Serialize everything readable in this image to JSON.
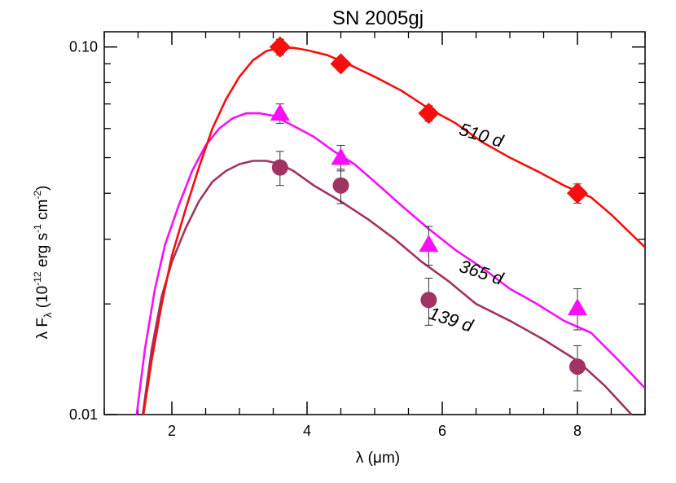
{
  "chart_data": {
    "type": "scatter",
    "title": "SN 2005gj",
    "xlabel": "λ (μm)",
    "ylabel": {
      "prefix": "λ F",
      "sub": "λ",
      "units_open": " (10",
      "exp1": "-12",
      "units_mid": " erg s",
      "exp2": "-1",
      "units_mid2": " cm",
      "exp3": "-2",
      "units_close": ")"
    },
    "xlim": [
      1,
      9
    ],
    "ylim": [
      0.01,
      0.11
    ],
    "yscale": "log",
    "xticks": [
      2,
      4,
      6,
      8
    ],
    "xtick_labels": [
      "2",
      "4",
      "6",
      "8"
    ],
    "yticks": [
      0.01,
      0.1
    ],
    "ytick_labels": [
      "0.01",
      "0.10"
    ],
    "grid": false,
    "series": [
      {
        "label": "510 d",
        "color": "#f50f0f",
        "marker": "diamond",
        "points": [
          {
            "x": 3.6,
            "y": 0.1,
            "err": 0.005
          },
          {
            "x": 4.5,
            "y": 0.09,
            "err": 0.0035
          },
          {
            "x": 5.8,
            "y": 0.066,
            "err": 0.0032
          },
          {
            "x": 8.0,
            "y": 0.04,
            "err": 0.0024
          }
        ],
        "model": [
          [
            1.58,
            0.01
          ],
          [
            1.7,
            0.014
          ],
          [
            1.85,
            0.02
          ],
          [
            2.0,
            0.027
          ],
          [
            2.2,
            0.036
          ],
          [
            2.4,
            0.047
          ],
          [
            2.6,
            0.06
          ],
          [
            2.8,
            0.072
          ],
          [
            3.0,
            0.083
          ],
          [
            3.2,
            0.092
          ],
          [
            3.4,
            0.0975
          ],
          [
            3.6,
            0.0995
          ],
          [
            3.8,
            0.0995
          ],
          [
            4.0,
            0.098
          ],
          [
            4.3,
            0.095
          ],
          [
            4.6,
            0.09
          ],
          [
            5.0,
            0.083
          ],
          [
            5.4,
            0.076
          ],
          [
            5.8,
            0.068
          ],
          [
            6.2,
            0.062
          ],
          [
            6.6,
            0.055
          ],
          [
            7.0,
            0.05
          ],
          [
            7.4,
            0.046
          ],
          [
            7.8,
            0.042
          ],
          [
            8.2,
            0.039
          ],
          [
            8.5,
            0.035
          ],
          [
            9.0,
            0.0285
          ]
        ]
      },
      {
        "label": "365 d",
        "color": "#f710f7",
        "marker": "triangle",
        "points": [
          {
            "x": 3.6,
            "y": 0.066,
            "err": 0.004
          },
          {
            "x": 4.5,
            "y": 0.05,
            "err": 0.004
          },
          {
            "x": 5.8,
            "y": 0.029,
            "err": 0.0035
          },
          {
            "x": 8.0,
            "y": 0.0195,
            "err": 0.0025
          }
        ],
        "model": [
          [
            1.48,
            0.01
          ],
          [
            1.6,
            0.015
          ],
          [
            1.75,
            0.022
          ],
          [
            1.9,
            0.029
          ],
          [
            2.1,
            0.037
          ],
          [
            2.3,
            0.046
          ],
          [
            2.5,
            0.054
          ],
          [
            2.7,
            0.06
          ],
          [
            2.9,
            0.064
          ],
          [
            3.1,
            0.066
          ],
          [
            3.3,
            0.066
          ],
          [
            3.5,
            0.065
          ],
          [
            3.8,
            0.061
          ],
          [
            4.1,
            0.057
          ],
          [
            4.4,
            0.052
          ],
          [
            4.7,
            0.048
          ],
          [
            5.0,
            0.043
          ],
          [
            5.4,
            0.037
          ],
          [
            5.8,
            0.032
          ],
          [
            6.2,
            0.028
          ],
          [
            6.6,
            0.025
          ],
          [
            7.0,
            0.022
          ],
          [
            7.4,
            0.02
          ],
          [
            7.8,
            0.018
          ],
          [
            8.2,
            0.0167
          ],
          [
            8.6,
            0.0141
          ],
          [
            9.0,
            0.0118
          ]
        ]
      },
      {
        "label": "139 d",
        "color": "#a13363",
        "marker": "circle",
        "points": [
          {
            "x": 3.6,
            "y": 0.047,
            "err": 0.005
          },
          {
            "x": 4.5,
            "y": 0.042,
            "err": 0.0045
          },
          {
            "x": 5.8,
            "y": 0.0205,
            "err": 0.003
          },
          {
            "x": 8.0,
            "y": 0.0135,
            "err": 0.0019
          }
        ],
        "model": [
          [
            1.57,
            0.01
          ],
          [
            1.7,
            0.015
          ],
          [
            1.85,
            0.021
          ],
          [
            2.0,
            0.026
          ],
          [
            2.2,
            0.032
          ],
          [
            2.4,
            0.038
          ],
          [
            2.6,
            0.043
          ],
          [
            2.8,
            0.046
          ],
          [
            3.0,
            0.048
          ],
          [
            3.2,
            0.049
          ],
          [
            3.4,
            0.049
          ],
          [
            3.6,
            0.048
          ],
          [
            3.8,
            0.046
          ],
          [
            4.1,
            0.042
          ],
          [
            4.5,
            0.038
          ],
          [
            4.9,
            0.034
          ],
          [
            5.3,
            0.03
          ],
          [
            5.7,
            0.026
          ],
          [
            6.1,
            0.023
          ],
          [
            6.5,
            0.02
          ],
          [
            7.0,
            0.018
          ],
          [
            7.5,
            0.016
          ],
          [
            8.0,
            0.014
          ],
          [
            8.4,
            0.012
          ],
          [
            8.8,
            0.01
          ]
        ]
      }
    ]
  }
}
